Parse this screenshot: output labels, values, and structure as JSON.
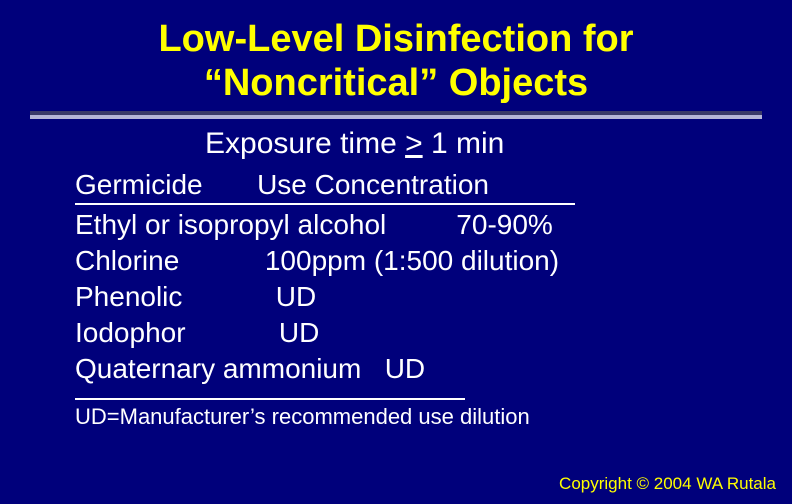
{
  "colors": {
    "background": "#00007b",
    "title": "#ffff00",
    "body_text": "#ffffff",
    "rule_dark": "#3a3a6a",
    "rule_light": "#b5b5d8",
    "copyright": "#ffff00"
  },
  "typography": {
    "title_fontsize": 38,
    "title_fontweight": "bold",
    "exposure_fontsize": 30,
    "row_fontsize": 28,
    "footnote_fontsize": 22,
    "copyright_fontsize": 17,
    "font_family": "Arial"
  },
  "title_line1": "Low-Level Disinfection for",
  "title_line2": "“Noncritical” Objects",
  "exposure_prefix": "Exposure time ",
  "exposure_op": ">",
  "exposure_suffix": " 1 min",
  "table": {
    "header_germicide": "Germicide",
    "header_concentration": "Use Concentration",
    "rows": [
      {
        "germicide": "Ethyl or isopropyl alcohol",
        "concentration": "70-90%"
      },
      {
        "germicide": "Chlorine",
        "concentration": "100ppm (1:500 dilution)"
      },
      {
        "germicide": "Phenolic",
        "concentration": "UD"
      },
      {
        "germicide": "Iodophor",
        "concentration": "UD"
      },
      {
        "germicide": "Quaternary ammonium",
        "concentration": "UD"
      }
    ]
  },
  "footnote": "UD=Manufacturer’s recommended use dilution",
  "copyright": "Copyright © 2004 WA Rutala"
}
